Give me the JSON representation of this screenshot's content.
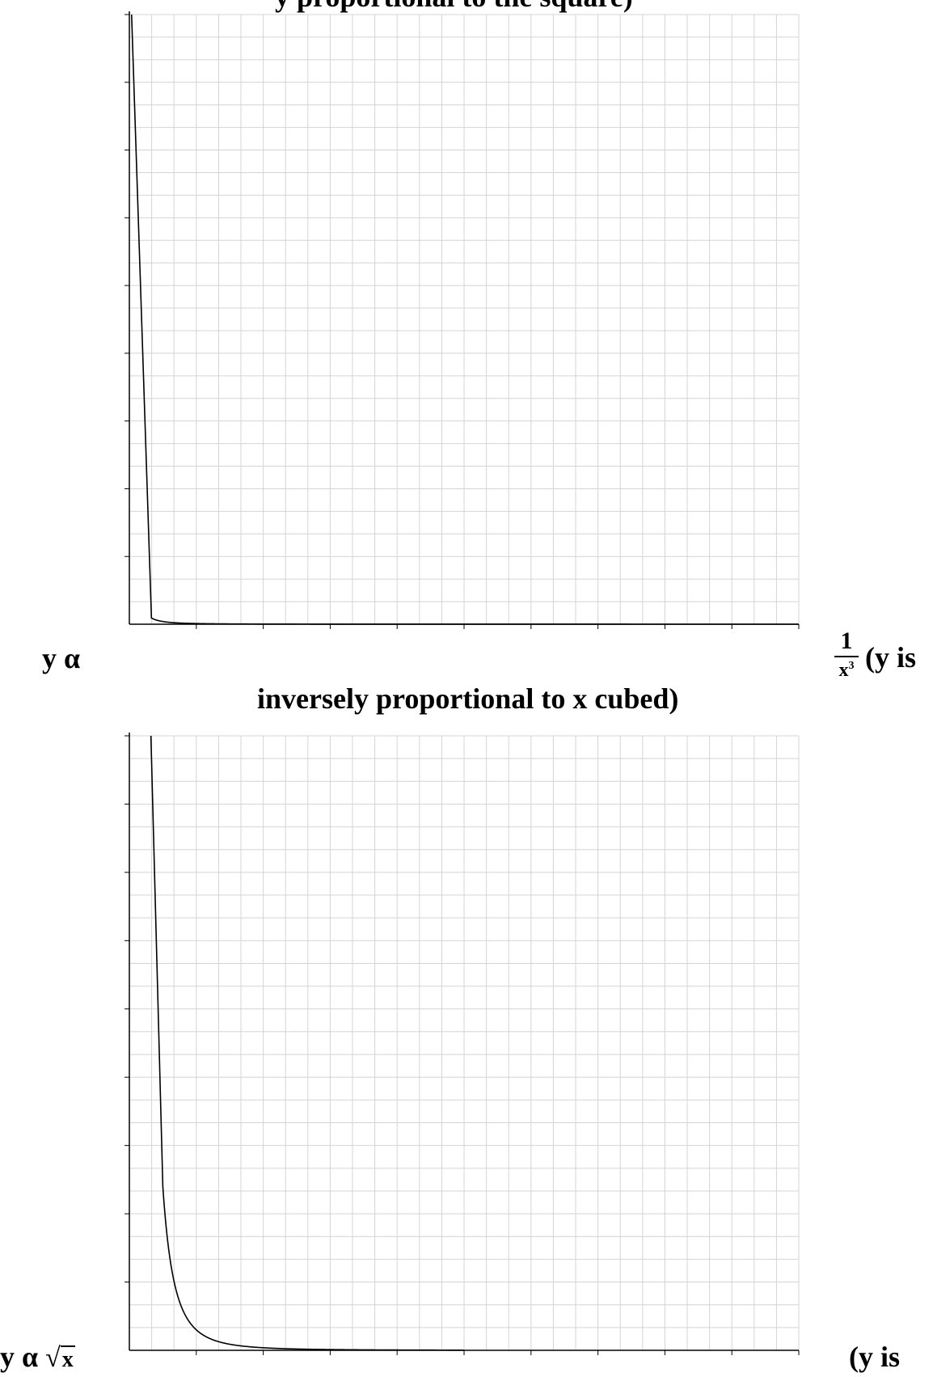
{
  "page": {
    "top_heading": "y proportional to the square)",
    "caption1_left": "y α",
    "caption1_frac_num": "1",
    "caption1_frac_den": "x",
    "caption1_frac_exp": "3",
    "caption1_right": "(y is",
    "caption1_line2": "inversely proportional to x cubed)",
    "caption2_left": "y α",
    "caption2_radicand": "x",
    "caption2_right": "(y is"
  },
  "chart_data": [
    {
      "type": "line",
      "title": "",
      "xlabel": "",
      "ylabel": "",
      "xlim": [
        0,
        10
      ],
      "ylim": [
        0,
        9
      ],
      "grid": true,
      "x_major_ticks": 10,
      "y_major_ticks": 9,
      "minor_per_major": 3,
      "series": [
        {
          "function": "y = 0.01 / x^2",
          "x_min": 0.33,
          "x_max": 10,
          "color": "#000000"
        }
      ]
    },
    {
      "type": "line",
      "title": "",
      "xlabel": "",
      "ylabel": "",
      "xlim": [
        0,
        10
      ],
      "ylim": [
        0,
        9
      ],
      "grid": true,
      "x_major_ticks": 10,
      "y_major_ticks": 9,
      "minor_per_major": 3,
      "series": [
        {
          "function": "y = 0.3 / x^3",
          "x_min": 0.5,
          "x_max": 5,
          "color": "#000000"
        }
      ]
    }
  ]
}
